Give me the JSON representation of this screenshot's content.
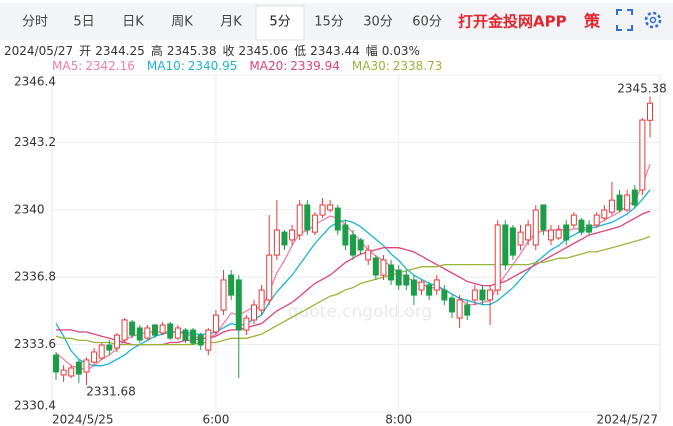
{
  "toolbar": {
    "tabs": [
      "分时",
      "5日",
      "日K",
      "周K",
      "月K",
      "5分",
      "15分",
      "30分",
      "60分"
    ],
    "active": 5,
    "app_link": "打开金投网APP",
    "strategy": "策"
  },
  "info": {
    "date": "2024/05/27",
    "items": [
      {
        "label": "开",
        "value": "2344.25"
      },
      {
        "label": "高",
        "value": "2345.38"
      },
      {
        "label": "收",
        "value": "2345.06"
      },
      {
        "label": "低",
        "value": "2343.44"
      },
      {
        "label": "幅",
        "value": "0.03%"
      }
    ]
  },
  "chart_data": {
    "type": "candlestick",
    "watermark": "quote.cngold.org",
    "annotations": [
      {
        "text": "2345.38"
      },
      {
        "text": "2331.68"
      }
    ],
    "up_color": "#e5393b",
    "down_color": "#1c9e48",
    "grid": true,
    "ylim": [
      2330.4,
      2346.4
    ],
    "yticks": [
      2330.4,
      2333.6,
      2336.8,
      2340,
      2343.2,
      2346.4
    ],
    "categories": [
      "2024/5/25",
      null,
      null,
      null,
      null,
      null,
      null,
      null,
      null,
      null,
      null,
      null,
      null,
      null,
      null,
      null,
      null,
      null,
      null,
      null,
      null,
      "6:00",
      null,
      null,
      null,
      null,
      null,
      null,
      null,
      null,
      null,
      null,
      null,
      null,
      null,
      null,
      null,
      null,
      null,
      null,
      null,
      null,
      null,
      null,
      null,
      "8:00",
      null,
      null,
      null,
      null,
      null,
      null,
      null,
      null,
      null,
      null,
      null,
      null,
      null,
      null,
      null,
      null,
      null,
      null,
      null,
      null,
      null,
      null,
      null,
      null,
      null,
      null,
      null,
      null,
      null,
      null,
      null,
      null,
      "2024/5/27"
    ],
    "open": [
      2333.1,
      2332.16,
      2332.11,
      2332.77,
      2332.3,
      2332.77,
      2332.96,
      2333.58,
      2333.44,
      2333.82,
      2334.67,
      2334.39,
      2333.91,
      2334.53,
      2334.15,
      2334.58,
      2333.91,
      2334.29,
      2334.29,
      2334.05,
      2333.34,
      2334.2,
      2335.24,
      2336.9,
      2336.67,
      2334.29,
      2334.77,
      2335.24,
      2335.72,
      2337.85,
      2338.94,
      2338.57,
      2338.8,
      2340.23,
      2338.94,
      2339.75,
      2339.99,
      2340.08,
      2339.28,
      2338.8,
      2338.57,
      2337.62,
      2337.71,
      2336.9,
      2337.38,
      2337.14,
      2336.9,
      2336.67,
      2336.19,
      2336.43,
      2336.19,
      2336.19,
      2335.81,
      2334.86,
      2335.48,
      2335.72,
      2336.19,
      2335.72,
      2336.19,
      2339.28,
      2339.14,
      2338.33,
      2338.57,
      2338.33,
      2340.23,
      2338.57,
      2338.66,
      2339.28,
      2339.28,
      2339.51,
      2339.28,
      2339.28,
      2339.61,
      2339.89,
      2340.7,
      2339.99,
      2340.94,
      2340.94,
      2344.25
    ],
    "high": [
      2333.25,
      2332.63,
      2332.63,
      2332.87,
      2333.0,
      2333.44,
      2333.67,
      2333.82,
      2334.15,
      2334.86,
      2334.77,
      2334.53,
      2334.53,
      2334.58,
      2334.67,
      2334.67,
      2334.53,
      2334.39,
      2334.39,
      2334.15,
      2334.39,
      2335.24,
      2337.14,
      2337.14,
      2336.9,
      2335.0,
      2335.72,
      2336.43,
      2339.75,
      2340.46,
      2339.04,
      2339.28,
      2340.46,
      2340.46,
      2339.89,
      2340.56,
      2340.46,
      2340.23,
      2339.51,
      2339.04,
      2338.66,
      2338.33,
      2337.85,
      2337.85,
      2337.62,
      2337.38,
      2337.14,
      2336.9,
      2336.67,
      2336.57,
      2336.9,
      2336.43,
      2335.95,
      2335.95,
      2335.72,
      2336.43,
      2336.43,
      2336.43,
      2339.51,
      2339.51,
      2339.28,
      2339.28,
      2339.51,
      2340.23,
      2340.23,
      2339.28,
      2339.28,
      2339.51,
      2339.89,
      2339.61,
      2339.51,
      2339.89,
      2340.23,
      2341.32,
      2340.94,
      2340.94,
      2341.18,
      2344.36,
      2345.38
    ],
    "low": [
      2331.92,
      2331.82,
      2332.01,
      2331.78,
      2331.68,
      2332.63,
      2332.87,
      2333.1,
      2333.25,
      2333.67,
      2333.91,
      2333.67,
      2333.82,
      2333.91,
      2334.05,
      2333.82,
      2333.82,
      2333.67,
      2333.58,
      2333.34,
      2333.1,
      2334.05,
      2335.0,
      2335.72,
      2332.01,
      2334.05,
      2334.58,
      2335.0,
      2335.48,
      2337.62,
      2338.09,
      2338.33,
      2338.57,
      2338.8,
      2338.8,
      2339.61,
      2339.89,
      2338.8,
      2338.09,
      2337.62,
      2337.85,
      2337.38,
      2336.67,
      2336.67,
      2336.43,
      2336.19,
      2336.19,
      2335.48,
      2335.95,
      2335.72,
      2335.95,
      2335.48,
      2334.86,
      2334.39,
      2334.77,
      2335.48,
      2335.48,
      2334.53,
      2335.95,
      2337.14,
      2337.62,
      2338.09,
      2338.33,
      2338.09,
      2338.8,
      2338.33,
      2338.57,
      2338.33,
      2339.14,
      2338.8,
      2338.8,
      2339.14,
      2339.51,
      2339.75,
      2339.89,
      2339.89,
      2340.08,
      2340.7,
      2343.44
    ],
    "close": [
      2332.3,
      2332.39,
      2332.49,
      2332.2,
      2332.87,
      2333.25,
      2333.58,
      2333.34,
      2334.05,
      2334.77,
      2334.05,
      2333.82,
      2334.39,
      2334.05,
      2334.53,
      2333.91,
      2334.39,
      2333.82,
      2333.67,
      2333.58,
      2334.29,
      2335.0,
      2336.67,
      2335.95,
      2334.29,
      2334.86,
      2335.48,
      2336.19,
      2337.85,
      2339.04,
      2338.33,
      2339.04,
      2340.23,
      2339.04,
      2339.75,
      2340.23,
      2340.23,
      2339.04,
      2338.33,
      2337.85,
      2338.09,
      2338.09,
      2336.9,
      2337.62,
      2336.67,
      2336.43,
      2336.43,
      2335.95,
      2336.57,
      2335.95,
      2336.67,
      2335.72,
      2335.15,
      2335.72,
      2335.0,
      2336.19,
      2335.72,
      2336.19,
      2339.28,
      2337.38,
      2337.85,
      2338.94,
      2339.28,
      2339.99,
      2339.04,
      2339.04,
      2339.04,
      2338.57,
      2339.75,
      2338.94,
      2338.94,
      2339.75,
      2339.99,
      2340.46,
      2339.99,
      2340.7,
      2340.23,
      2344.26,
      2345.06
    ],
    "series": [
      {
        "name": "MA5:",
        "color": "#f07fa6",
        "values": [
          2333.2,
          2332.9,
          2332.6,
          2332.5,
          2332.4,
          2332.6,
          2332.9,
          2333.1,
          2333.4,
          2333.8,
          2334.0,
          2334.1,
          2334.2,
          2334.2,
          2334.2,
          2334.2,
          2334.2,
          2334.1,
          2334.0,
          2333.9,
          2333.9,
          2334.1,
          2334.6,
          2335.1,
          2335.0,
          2335.2,
          2335.4,
          2335.3,
          2336.1,
          2337.0,
          2337.6,
          2338.3,
          2338.9,
          2339.0,
          2339.3,
          2339.5,
          2339.7,
          2339.6,
          2339.3,
          2338.9,
          2338.5,
          2338.1,
          2337.8,
          2337.6,
          2337.3,
          2337.0,
          2336.8,
          2336.6,
          2336.5,
          2336.3,
          2336.3,
          2336.2,
          2336.0,
          2335.8,
          2335.5,
          2335.5,
          2335.6,
          2335.7,
          2336.4,
          2336.9,
          2337.4,
          2337.9,
          2338.5,
          2338.9,
          2339.0,
          2339.0,
          2339.1,
          2339.0,
          2339.1,
          2339.1,
          2339.2,
          2339.3,
          2339.5,
          2339.7,
          2339.9,
          2340.2,
          2340.4,
          2341.2,
          2342.16
        ]
      },
      {
        "name": "MA10:",
        "color": "#1db3d6",
        "values": [
          2334.6,
          2334.0,
          2333.3,
          2332.9,
          2332.7,
          2332.6,
          2332.6,
          2332.7,
          2332.9,
          2333.1,
          2333.4,
          2333.6,
          2333.8,
          2334.0,
          2334.1,
          2334.2,
          2334.2,
          2334.2,
          2334.1,
          2334.1,
          2334.1,
          2334.2,
          2334.4,
          2334.6,
          2334.5,
          2334.6,
          2334.8,
          2335.0,
          2335.6,
          2336.1,
          2336.5,
          2336.9,
          2337.4,
          2337.9,
          2338.4,
          2338.8,
          2339.2,
          2339.4,
          2339.5,
          2339.4,
          2339.2,
          2338.9,
          2338.6,
          2338.3,
          2337.9,
          2337.6,
          2337.2,
          2336.9,
          2336.7,
          2336.5,
          2336.4,
          2336.2,
          2336.0,
          2335.8,
          2335.7,
          2335.6,
          2335.5,
          2335.5,
          2335.7,
          2336.0,
          2336.3,
          2336.7,
          2337.1,
          2337.5,
          2337.8,
          2338.1,
          2338.3,
          2338.6,
          2338.8,
          2339.0,
          2339.1,
          2339.2,
          2339.3,
          2339.4,
          2339.6,
          2339.8,
          2340.1,
          2340.5,
          2340.95
        ]
      },
      {
        "name": "MA20:",
        "color": "#e0427a",
        "values": [
          2334.3,
          2334.3,
          2334.3,
          2334.2,
          2334.2,
          2334.1,
          2334.0,
          2333.9,
          2333.8,
          2333.7,
          2333.6,
          2333.6,
          2333.6,
          2333.6,
          2333.6,
          2333.7,
          2333.7,
          2333.8,
          2333.8,
          2333.9,
          2333.9,
          2334.0,
          2334.2,
          2334.3,
          2334.3,
          2334.4,
          2334.5,
          2334.6,
          2334.9,
          2335.2,
          2335.4,
          2335.6,
          2335.9,
          2336.2,
          2336.5,
          2336.7,
          2336.9,
          2337.2,
          2337.5,
          2337.7,
          2337.9,
          2338.0,
          2338.1,
          2338.2,
          2338.2,
          2338.2,
          2338.1,
          2338.0,
          2337.8,
          2337.6,
          2337.4,
          2337.2,
          2337.0,
          2336.8,
          2336.6,
          2336.5,
          2336.4,
          2336.4,
          2336.5,
          2336.6,
          2336.8,
          2337.0,
          2337.2,
          2337.4,
          2337.6,
          2337.8,
          2338.0,
          2338.2,
          2338.4,
          2338.6,
          2338.8,
          2338.9,
          2339.0,
          2339.1,
          2339.2,
          2339.4,
          2339.6,
          2339.8,
          2339.94
        ]
      },
      {
        "name": "MA30:",
        "color": "#9ab43a",
        "values": [
          2334.0,
          2333.9,
          2333.9,
          2333.8,
          2333.8,
          2333.7,
          2333.7,
          2333.7,
          2333.6,
          2333.6,
          2333.6,
          2333.6,
          2333.6,
          2333.6,
          2333.6,
          2333.6,
          2333.6,
          2333.6,
          2333.6,
          2333.7,
          2333.7,
          2333.7,
          2333.8,
          2333.9,
          2333.9,
          2333.9,
          2334.0,
          2334.1,
          2334.3,
          2334.5,
          2334.7,
          2334.9,
          2335.1,
          2335.3,
          2335.5,
          2335.7,
          2335.9,
          2336.0,
          2336.2,
          2336.3,
          2336.5,
          2336.6,
          2336.7,
          2336.8,
          2336.9,
          2337.0,
          2337.1,
          2337.2,
          2337.3,
          2337.3,
          2337.3,
          2337.4,
          2337.4,
          2337.4,
          2337.4,
          2337.4,
          2337.4,
          2337.4,
          2337.4,
          2337.4,
          2337.4,
          2337.4,
          2337.4,
          2337.5,
          2337.5,
          2337.6,
          2337.7,
          2337.7,
          2337.8,
          2337.9,
          2338.0,
          2338.0,
          2338.1,
          2338.2,
          2338.3,
          2338.4,
          2338.5,
          2338.6,
          2338.73
        ]
      }
    ]
  }
}
